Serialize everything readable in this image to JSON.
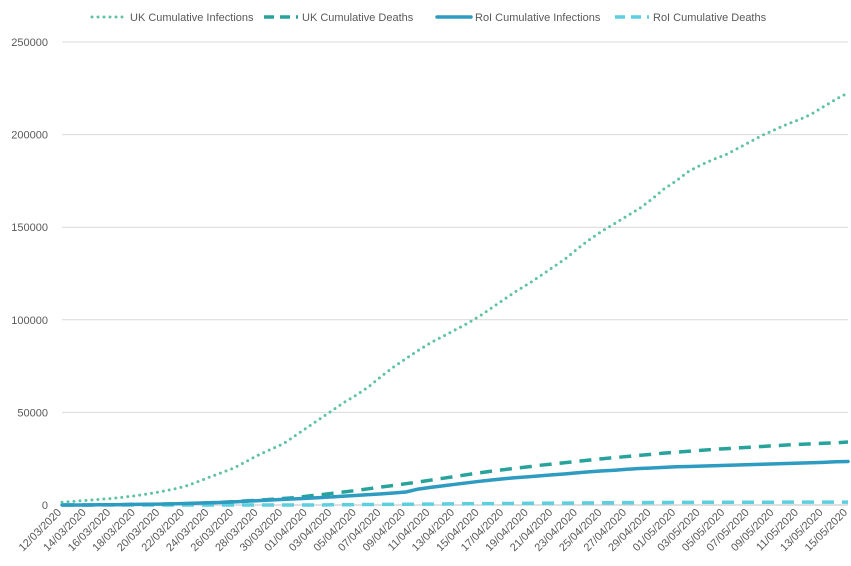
{
  "chart_data": {
    "type": "line",
    "title": "",
    "xlabel": "",
    "ylabel": "",
    "ylim": [
      0,
      250000
    ],
    "yticks": [
      0,
      50000,
      100000,
      150000,
      200000,
      250000
    ],
    "ytick_labels": [
      "0",
      "50000",
      "100000",
      "150000",
      "200000",
      "250000"
    ],
    "grid": "horizontal",
    "legend_position": "top",
    "x": [
      "12/03/2020",
      "13/03/2020",
      "14/03/2020",
      "15/03/2020",
      "16/03/2020",
      "17/03/2020",
      "18/03/2020",
      "19/03/2020",
      "20/03/2020",
      "21/03/2020",
      "22/03/2020",
      "23/03/2020",
      "24/03/2020",
      "25/03/2020",
      "26/03/2020",
      "27/03/2020",
      "28/03/2020",
      "29/03/2020",
      "30/03/2020",
      "31/03/2020",
      "01/04/2020",
      "02/04/2020",
      "03/04/2020",
      "04/04/2020",
      "05/04/2020",
      "06/04/2020",
      "07/04/2020",
      "08/04/2020",
      "09/04/2020",
      "10/04/2020",
      "11/04/2020",
      "12/04/2020",
      "13/04/2020",
      "14/04/2020",
      "15/04/2020",
      "16/04/2020",
      "17/04/2020",
      "18/04/2020",
      "19/04/2020",
      "20/04/2020",
      "21/04/2020",
      "22/04/2020",
      "23/04/2020",
      "24/04/2020",
      "25/04/2020",
      "26/04/2020",
      "27/04/2020",
      "28/04/2020",
      "29/04/2020",
      "30/04/2020",
      "01/05/2020",
      "02/05/2020",
      "03/05/2020",
      "04/05/2020",
      "05/05/2020",
      "06/05/2020",
      "07/05/2020",
      "08/05/2020",
      "09/05/2020",
      "10/05/2020",
      "11/05/2020",
      "12/05/2020",
      "13/05/2020",
      "14/05/2020",
      "15/05/2020"
    ],
    "xtick_labels": [
      "12/03/2020",
      "14/03/2020",
      "16/03/2020",
      "18/03/2020",
      "20/03/2020",
      "22/03/2020",
      "24/03/2020",
      "26/03/2020",
      "28/03/2020",
      "30/03/2020",
      "01/04/2020",
      "03/04/2020",
      "05/04/2020",
      "07/04/2020",
      "09/04/2020",
      "11/04/2020",
      "13/04/2020",
      "15/04/2020",
      "17/04/2020",
      "19/04/2020",
      "21/04/2020",
      "23/04/2020",
      "25/04/2020",
      "27/04/2020",
      "29/04/2020",
      "01/05/2020",
      "03/05/2020",
      "05/05/2020",
      "07/05/2020",
      "09/05/2020",
      "11/05/2020",
      "13/05/2020",
      "15/05/2020"
    ],
    "series": [
      {
        "name": "UK Cumulative Infections",
        "color": "#5fc1a5",
        "style": "dotted",
        "values": [
          1500,
          2000,
          2500,
          3000,
          3500,
          4200,
          5000,
          6000,
          7200,
          8500,
          10000,
          12500,
          15000,
          17500,
          20000,
          23500,
          27000,
          30000,
          33000,
          37500,
          42000,
          46500,
          51000,
          55500,
          59500,
          64000,
          69500,
          74500,
          79000,
          83500,
          87500,
          91000,
          94500,
          98000,
          102000,
          106500,
          111000,
          115500,
          119500,
          124000,
          128500,
          133000,
          138500,
          143500,
          148000,
          152000,
          156000,
          160000,
          165000,
          170500,
          175000,
          180000,
          183500,
          186500,
          189000,
          192500,
          196000,
          199500,
          202500,
          205500,
          208000,
          211000,
          215000,
          219000,
          222500
        ]
      },
      {
        "name": "UK Cumulative Deaths",
        "color": "#27a39b",
        "style": "dashed",
        "values": [
          0,
          0,
          0,
          100,
          150,
          200,
          300,
          400,
          500,
          600,
          700,
          900,
          1200,
          1500,
          1800,
          2200,
          2600,
          3000,
          3500,
          4000,
          4800,
          5500,
          6300,
          7100,
          7900,
          8800,
          9700,
          10600,
          11500,
          12400,
          13400,
          14400,
          15400,
          16400,
          17400,
          18300,
          19100,
          19900,
          20700,
          21500,
          22200,
          22900,
          23600,
          24300,
          25000,
          25600,
          26200,
          26800,
          27400,
          28000,
          28500,
          29000,
          29500,
          30000,
          30400,
          30800,
          31200,
          31600,
          32000,
          32400,
          32700,
          33000,
          33300,
          33600,
          34000
        ]
      },
      {
        "name": "RoI Cumulative Infections",
        "color": "#2e9bc0",
        "style": "solid",
        "values": [
          0,
          0,
          0,
          100,
          150,
          200,
          300,
          400,
          500,
          600,
          800,
          1000,
          1200,
          1400,
          1700,
          2000,
          2400,
          2700,
          3000,
          3300,
          3600,
          4000,
          4400,
          4800,
          5200,
          5600,
          6000,
          6500,
          7000,
          8600,
          9500,
          10300,
          11200,
          12000,
          12800,
          13500,
          14200,
          14800,
          15300,
          15800,
          16300,
          16800,
          17400,
          18000,
          18400,
          18800,
          19300,
          19700,
          20000,
          20300,
          20600,
          20800,
          21000,
          21200,
          21400,
          21600,
          21800,
          22000,
          22200,
          22400,
          22600,
          22800,
          23000,
          23300,
          23500
        ]
      },
      {
        "name": "RoI Cumulative Deaths",
        "color": "#5ccfe0",
        "style": "dashed",
        "values": [
          0,
          0,
          0,
          0,
          0,
          0,
          0,
          0,
          0,
          0,
          0,
          0,
          0,
          0,
          0,
          0,
          0,
          0,
          0,
          0,
          0,
          0,
          100,
          150,
          200,
          250,
          300,
          350,
          400,
          450,
          500,
          550,
          600,
          650,
          700,
          750,
          800,
          850,
          900,
          950,
          1000,
          1050,
          1100,
          1150,
          1200,
          1250,
          1300,
          1300,
          1350,
          1350,
          1400,
          1400,
          1450,
          1450,
          1450,
          1500,
          1500,
          1500,
          1500,
          1550,
          1550,
          1550,
          1550,
          1550,
          1550
        ]
      }
    ]
  }
}
